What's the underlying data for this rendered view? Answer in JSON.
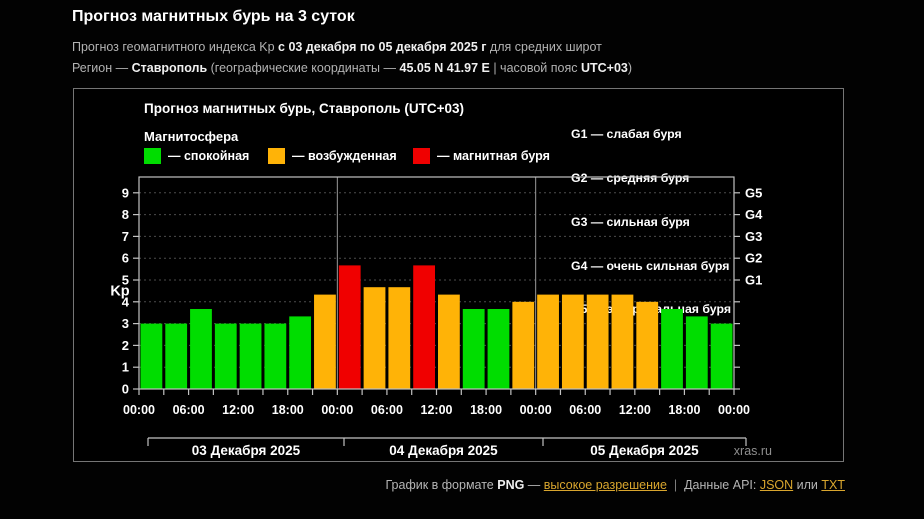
{
  "header": {
    "title": "Прогноз магнитных бурь на 3 суток",
    "line1": {
      "p1": "Прогноз геомагнитного индекса Kp ",
      "p2": "с 03 декабря по 05 декабря 2025 г",
      "p3": " для средних широт"
    },
    "line2": {
      "p1": "Регион — ",
      "p2": "Ставрополь",
      "p3": " (географические координаты — ",
      "p4": "45.05 N 41.97 E",
      "p5": " | часовой пояс ",
      "p6": "UTC+03",
      "p7": ")"
    }
  },
  "chart": {
    "legend_title": "Магнитосфера",
    "legend": [
      {
        "label": "— спокойная",
        "color": "#00dd00"
      },
      {
        "label": "— возбужденная",
        "color": "#ffb307"
      },
      {
        "label": "— магнитная буря",
        "color": "#f00000"
      }
    ],
    "g_scale": [
      "G1 — слабая буря",
      "G2 — средняя буря",
      "G3 — сильная буря",
      "G4 — очень сильная буря",
      "G5 — экстремальная буря"
    ]
  },
  "chart_data": {
    "type": "bar",
    "title": "Прогноз магнитных бурь, Ставрополь (UTC+03)",
    "ylabel": "Kp",
    "ylim": [
      0,
      9.7
    ],
    "yticks": [
      0,
      1,
      2,
      3,
      4,
      5,
      6,
      7,
      8,
      9
    ],
    "grid": "dotted horizontal at each Kp integer",
    "g_levels": [
      {
        "kp": 5,
        "label": "G1"
      },
      {
        "kp": 6,
        "label": "G2"
      },
      {
        "kp": 7,
        "label": "G3"
      },
      {
        "kp": 8,
        "label": "G4"
      },
      {
        "kp": 9,
        "label": "G5"
      }
    ],
    "x_time_labels": [
      "00:00",
      "06:00",
      "12:00",
      "18:00",
      "00:00",
      "06:00",
      "12:00",
      "18:00",
      "00:00",
      "06:00",
      "12:00",
      "18:00",
      "00:00"
    ],
    "days": [
      {
        "date": "03 Декабря 2025",
        "values": [
          3.0,
          3.0,
          3.67,
          3.0,
          3.0,
          3.0,
          3.33,
          4.33
        ]
      },
      {
        "date": "04 Декабря 2025",
        "values": [
          5.67,
          4.67,
          4.67,
          5.67,
          4.33,
          3.67,
          3.67,
          4.0
        ]
      },
      {
        "date": "05 Декабря 2025",
        "values": [
          4.33,
          4.33,
          4.33,
          4.33,
          4.0,
          3.67,
          3.33,
          3.0
        ]
      }
    ],
    "colors": {
      "quiet": "#00dd00",
      "excited": "#ffb307",
      "storm": "#f00000"
    },
    "color_rule": "kp < 4 quiet (green), 4 <= kp < 5 excited (orange), kp >= 5 storm (red)",
    "watermark": "xras.ru"
  },
  "footer": {
    "format_label": "График в формате ",
    "png": "PNG",
    "dash": " — ",
    "high_res_link": "высокое разрешение",
    "separator": "  |  ",
    "api_label": "Данные API: ",
    "json_link": "JSON",
    "or": " или ",
    "txt_link": "TXT"
  }
}
